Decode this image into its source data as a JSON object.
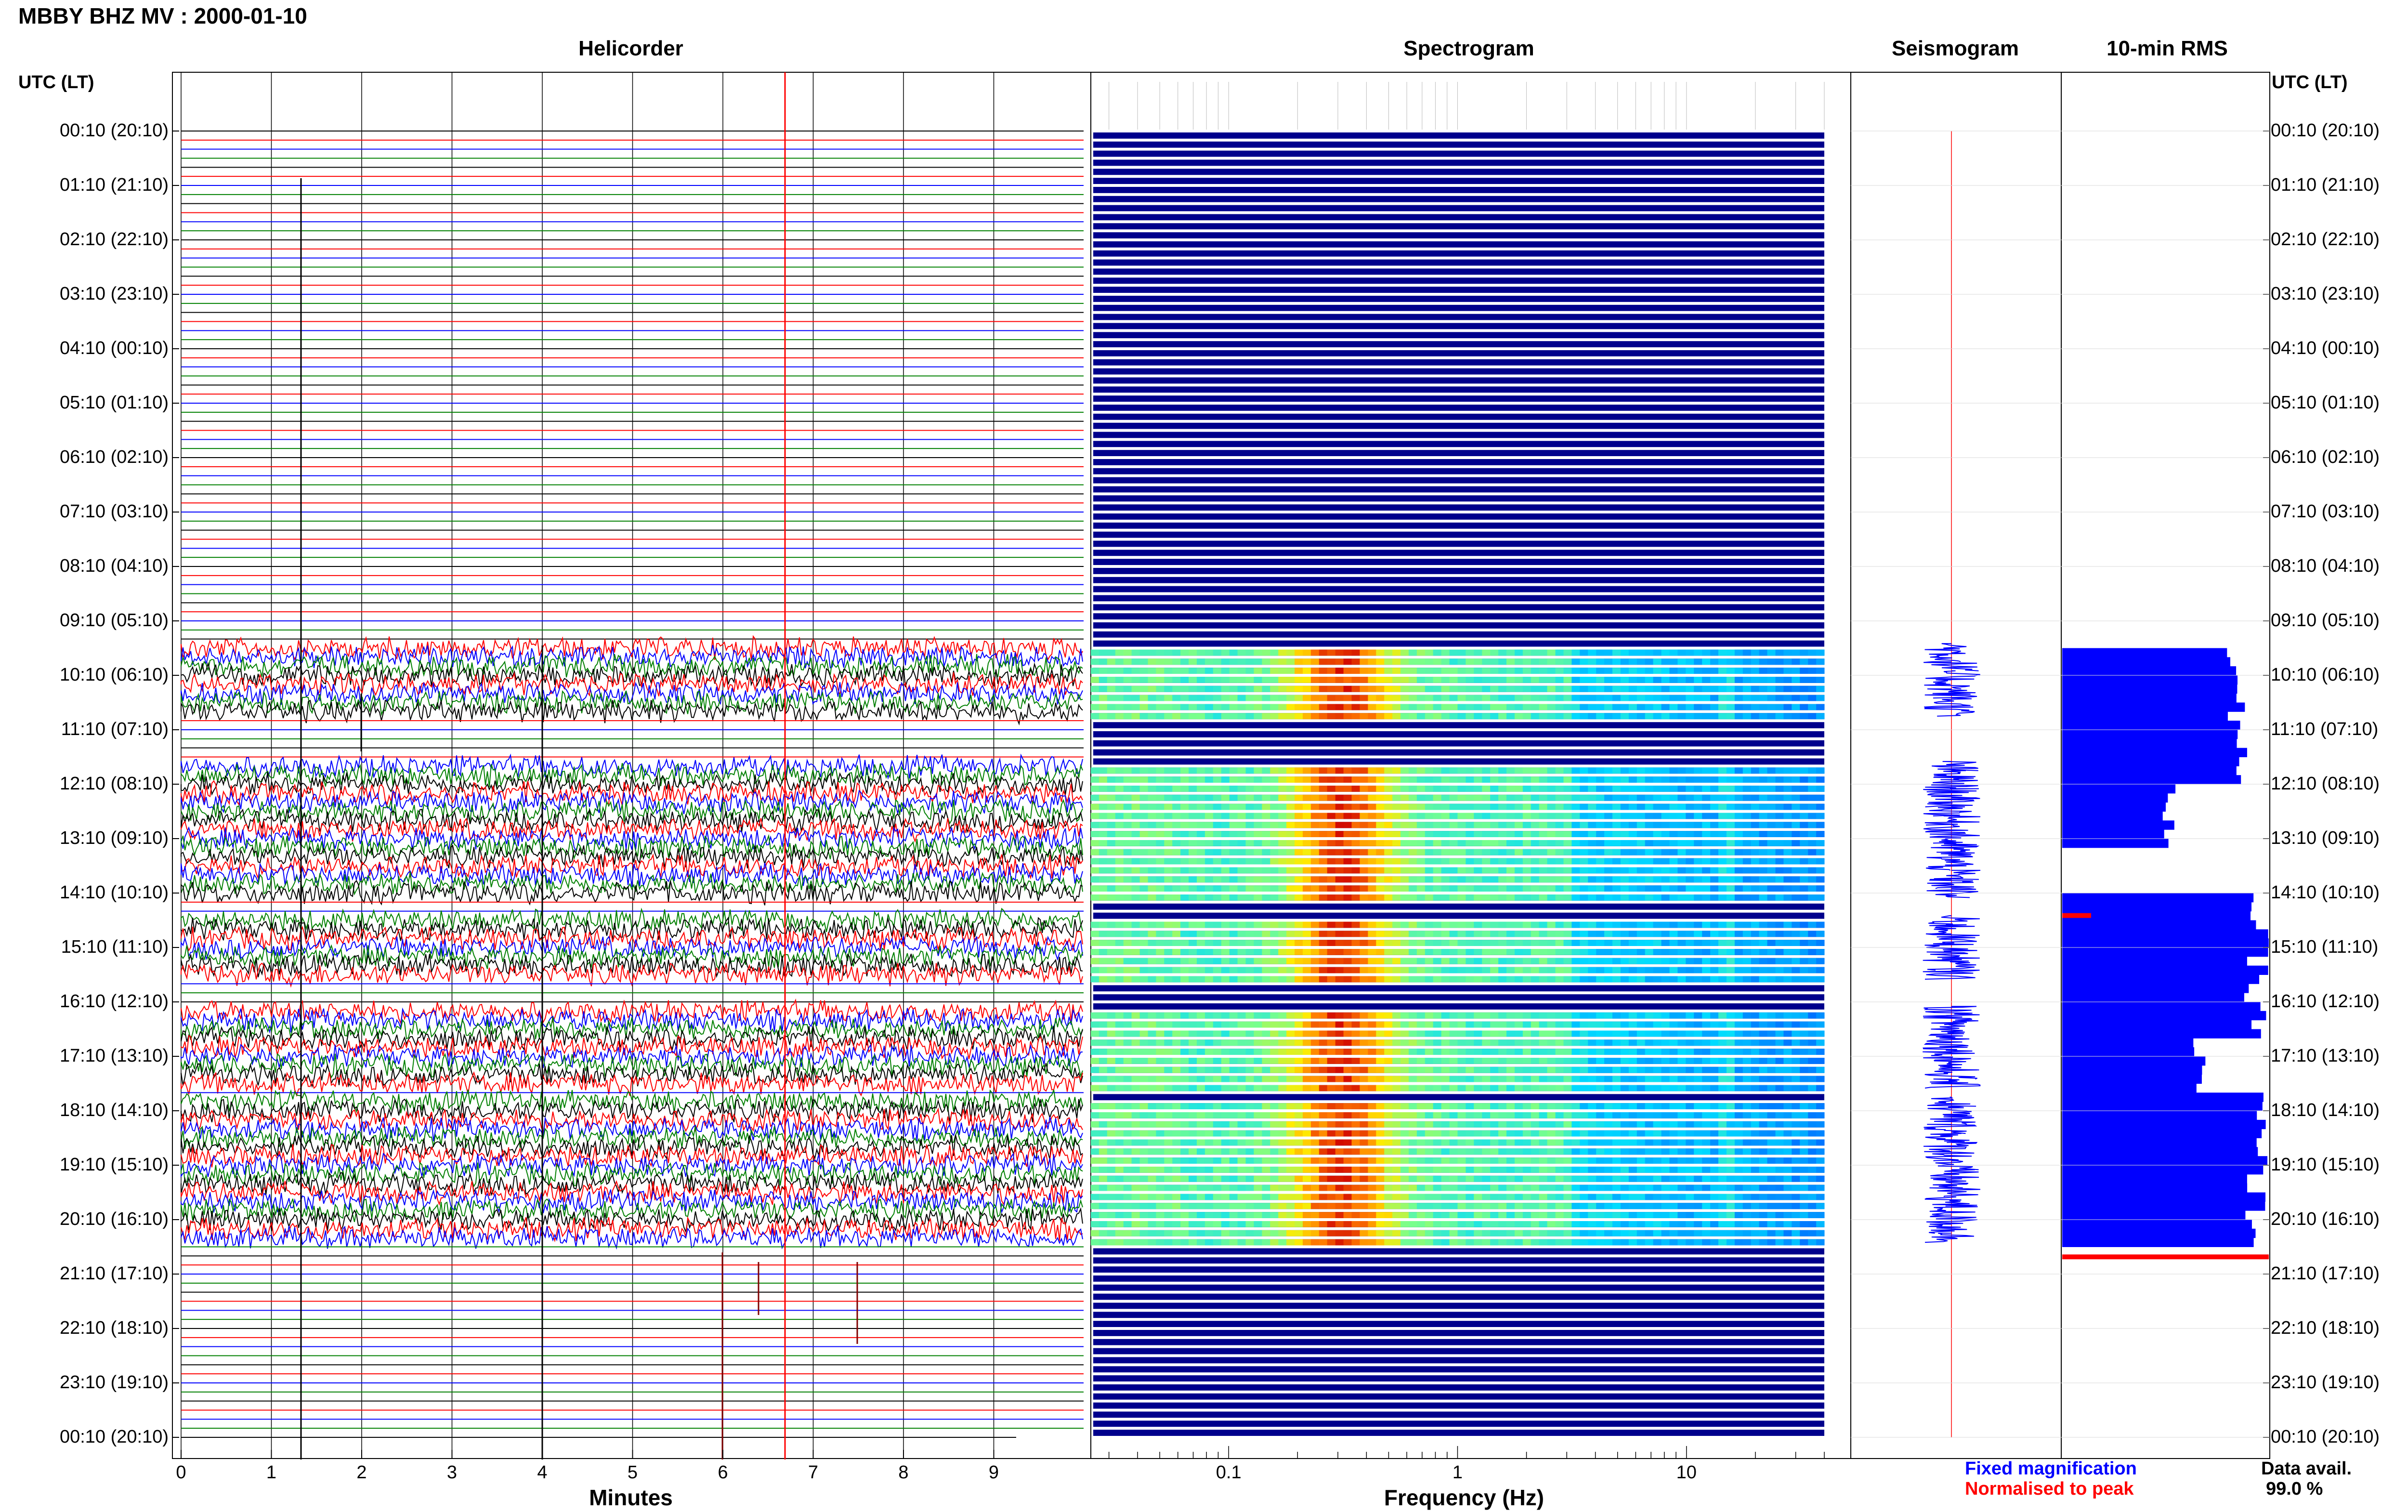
{
  "header": {
    "title": "MBBY BHZ MV : 2000-01-10"
  },
  "panels": {
    "helicorder": "Helicorder",
    "spectrogram": "Spectrogram",
    "seismogram": "Seismogram",
    "rms": "10-min RMS"
  },
  "axis": {
    "utc_left": "UTC (LT)",
    "utc_right": "UTC (LT)",
    "minutes_label": "Minutes",
    "frequency_label": "Frequency (Hz)",
    "time_labels": [
      "00:10 (20:10)",
      "01:10 (21:10)",
      "02:10 (22:10)",
      "03:10 (23:10)",
      "04:10 (00:10)",
      "05:10 (01:10)",
      "06:10 (02:10)",
      "07:10 (03:10)",
      "08:10 (04:10)",
      "09:10 (05:10)",
      "10:10 (06:10)",
      "11:10 (07:10)",
      "12:10 (08:10)",
      "13:10 (09:10)",
      "14:10 (10:10)",
      "15:10 (11:10)",
      "16:10 (12:10)",
      "17:10 (13:10)",
      "18:10 (14:10)",
      "19:10 (15:10)",
      "20:10 (16:10)",
      "21:10 (17:10)",
      "22:10 (18:10)",
      "23:10 (19:10)",
      "00:10 (20:10)"
    ],
    "minute_ticks": [
      "0",
      "1",
      "2",
      "3",
      "4",
      "5",
      "6",
      "7",
      "8",
      "9"
    ],
    "freq_ticks": [
      "0.1",
      "1",
      "10"
    ]
  },
  "legend": {
    "fixed": "Fixed magnification",
    "normalised": "Normalised to peak",
    "fixed_color": "#0000ff",
    "normalised_color": "#ff0000"
  },
  "availability": {
    "label": "Data avail.",
    "value": "99.0 %"
  },
  "chart_data": {
    "type": "heatmap",
    "station": "MBBY BHZ MV",
    "date": "2000-01-10",
    "rows_per_hour": 6,
    "hours": 24,
    "minutes_range": [
      0,
      10
    ],
    "freq_range_hz": [
      0.025,
      40
    ],
    "freq_scale": "log",
    "trace_colors": [
      "#000000",
      "#ff0000",
      "#0000ff",
      "#008000"
    ],
    "active_intervals_rows": [
      [
        57,
        65
      ],
      [
        70,
        85
      ],
      [
        87,
        94
      ],
      [
        97,
        106
      ],
      [
        107,
        123
      ]
    ],
    "rms_profile": [
      {
        "row_start": 57,
        "row_end": 72,
        "level": 0.9
      },
      {
        "row_start": 72,
        "row_end": 79,
        "level": 0.55
      },
      {
        "row_start": 84,
        "row_end": 100,
        "level": 1.0
      },
      {
        "row_start": 100,
        "row_end": 106,
        "level": 0.7
      },
      {
        "row_start": 106,
        "row_end": 123,
        "level": 1.0
      }
    ],
    "data_availability_percent": 99.0
  }
}
